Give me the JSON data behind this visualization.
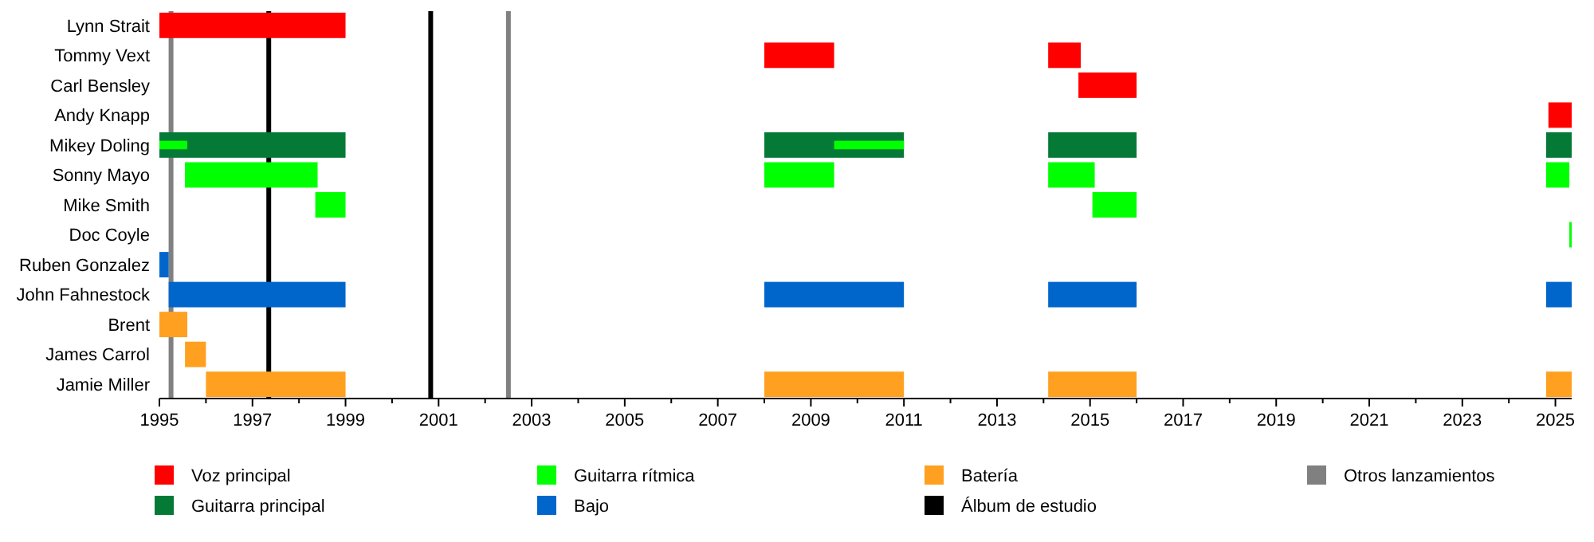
{
  "chart_data": {
    "type": "bar",
    "orientation": "horizontal",
    "legend": "bottom",
    "categories": [
      "Lynn Strait",
      "Tommy Vext",
      "Carl Bensley",
      "Andy Knapp",
      "Mikey Doling",
      "Sonny Mayo",
      "Mike Smith",
      "Doc Coyle",
      "Ruben Gonzalez",
      "John Fahnestock",
      "Brent",
      "James Carrol",
      "Jamie Miller"
    ],
    "xlim": [
      1995,
      2025.35
    ],
    "xticks": [
      1995,
      {
        "value": 1996,
        "label": null
      },
      1997,
      {
        "value": 1998,
        "label": null
      },
      1999,
      {
        "value": 2000,
        "label": null
      },
      2001,
      {
        "value": 2002,
        "label": null
      },
      2003,
      {
        "value": 2004,
        "label": null
      },
      2005,
      {
        "value": 2006,
        "label": null
      },
      2007,
      {
        "value": 2008,
        "label": null
      },
      2009,
      {
        "value": 2010,
        "label": null
      },
      2011,
      {
        "value": 2012,
        "label": null
      },
      2013,
      {
        "value": 2014,
        "label": null
      },
      2015,
      {
        "value": 2016,
        "label": null
      },
      2017,
      {
        "value": 2018,
        "label": null
      },
      2019,
      {
        "value": 2020,
        "label": null
      },
      2021,
      {
        "value": 2022,
        "label": null
      },
      2023,
      {
        "value": 2024,
        "label": null
      },
      2025
    ],
    "series": [
      {
        "name": "Voz principal",
        "color": "#ff0000",
        "base": [
          1995,
          2008,
          2014.75,
          2024.85,
          null,
          null,
          null,
          null,
          null,
          null,
          null,
          null,
          null
        ],
        "values": [
          4,
          1.5,
          1.25,
          0.5,
          null,
          null,
          null,
          null,
          null,
          null,
          null,
          null,
          null
        ]
      },
      {
        "color": "#ff0000",
        "base": [
          null,
          2014.1,
          null,
          null,
          null,
          null,
          null,
          null,
          null,
          null,
          null,
          null,
          null
        ],
        "values": [
          null,
          0.7,
          null,
          null,
          null,
          null,
          null,
          null,
          null,
          null,
          null,
          null,
          null
        ]
      },
      {
        "name": "Guitarra principal",
        "color": "#057a36",
        "base": [
          null,
          null,
          null,
          null,
          1995,
          null,
          null,
          null,
          null,
          null,
          null,
          null,
          null
        ],
        "values": [
          null,
          null,
          null,
          null,
          4,
          null,
          null,
          null,
          null,
          null,
          null,
          null,
          null
        ]
      },
      {
        "color": "#057a36",
        "base": [
          null,
          null,
          null,
          null,
          2008,
          null,
          null,
          null,
          null,
          null,
          null,
          null,
          null
        ],
        "values": [
          null,
          null,
          null,
          null,
          3,
          null,
          null,
          null,
          null,
          null,
          null,
          null,
          null
        ]
      },
      {
        "color": "#057a36",
        "base": [
          null,
          null,
          null,
          null,
          2014.1,
          null,
          null,
          null,
          null,
          null,
          null,
          null,
          null
        ],
        "values": [
          null,
          null,
          null,
          null,
          1.9,
          null,
          null,
          null,
          null,
          null,
          null,
          null,
          null
        ]
      },
      {
        "color": "#057a36",
        "base": [
          null,
          null,
          null,
          null,
          2024.8,
          null,
          null,
          null,
          null,
          null,
          null,
          null,
          null
        ],
        "values": [
          null,
          null,
          null,
          null,
          0.55,
          null,
          null,
          null,
          null,
          null,
          null,
          null,
          null
        ]
      },
      {
        "name": "Guitarra rítmica",
        "color": "#00ff00",
        "base": [
          null,
          null,
          null,
          null,
          1995,
          1995.55,
          1998.35,
          2025.3,
          null,
          null,
          null,
          null,
          null
        ],
        "values": [
          null,
          null,
          null,
          null,
          0.6,
          2.85,
          0.65,
          0.05,
          null,
          null,
          null,
          null,
          null
        ]
      },
      {
        "color": "#00ff00",
        "base": [
          null,
          null,
          null,
          null,
          2009.5,
          2008,
          2015.05,
          null,
          null,
          null,
          null,
          null,
          null
        ],
        "values": [
          null,
          null,
          null,
          null,
          1.5,
          1.5,
          0.95,
          null,
          null,
          null,
          null,
          null,
          null
        ]
      },
      {
        "color": "#00ff00",
        "base": [
          null,
          null,
          null,
          null,
          null,
          2014.1,
          null,
          null,
          null,
          null,
          null,
          null,
          null
        ],
        "values": [
          null,
          null,
          null,
          null,
          null,
          1,
          null,
          null,
          null,
          null,
          null,
          null,
          null
        ]
      },
      {
        "color": "#00ff00",
        "base": [
          null,
          null,
          null,
          null,
          null,
          2024.8,
          null,
          null,
          null,
          null,
          null,
          null,
          null
        ],
        "values": [
          null,
          null,
          null,
          null,
          null,
          0.5,
          null,
          null,
          null,
          null,
          null,
          null,
          null
        ]
      },
      {
        "name": "Bajo",
        "color": "#0066cc",
        "base": [
          null,
          null,
          null,
          null,
          null,
          null,
          null,
          null,
          1995,
          1995.2,
          null,
          null,
          null
        ],
        "values": [
          null,
          null,
          null,
          null,
          null,
          null,
          null,
          null,
          0.2,
          3.8,
          null,
          null,
          null
        ]
      },
      {
        "color": "#0066cc",
        "base": [
          null,
          null,
          null,
          null,
          null,
          null,
          null,
          null,
          null,
          2008,
          null,
          null,
          null
        ],
        "values": [
          null,
          null,
          null,
          null,
          null,
          null,
          null,
          null,
          null,
          3,
          null,
          null,
          null
        ]
      },
      {
        "color": "#0066cc",
        "base": [
          null,
          null,
          null,
          null,
          null,
          null,
          null,
          null,
          null,
          2014.1,
          null,
          null,
          null
        ],
        "values": [
          null,
          null,
          null,
          null,
          null,
          null,
          null,
          null,
          null,
          1.9,
          null,
          null,
          null
        ]
      },
      {
        "color": "#0066cc",
        "base": [
          null,
          null,
          null,
          null,
          null,
          null,
          null,
          null,
          null,
          2024.8,
          null,
          null,
          null
        ],
        "values": [
          null,
          null,
          null,
          null,
          null,
          null,
          null,
          null,
          null,
          0.55,
          null,
          null,
          null
        ]
      },
      {
        "name": "Batería",
        "color": "#ffa020",
        "base": [
          null,
          null,
          null,
          null,
          null,
          null,
          null,
          null,
          null,
          null,
          1995,
          1995.55,
          1996
        ],
        "values": [
          null,
          null,
          null,
          null,
          null,
          null,
          null,
          null,
          null,
          null,
          0.6,
          0.45,
          3
        ]
      },
      {
        "color": "#ffa020",
        "base": [
          null,
          null,
          null,
          null,
          null,
          null,
          null,
          null,
          null,
          null,
          null,
          null,
          2008
        ],
        "values": [
          null,
          null,
          null,
          null,
          null,
          null,
          null,
          null,
          null,
          null,
          null,
          null,
          3
        ]
      },
      {
        "color": "#ffa020",
        "base": [
          null,
          null,
          null,
          null,
          null,
          null,
          null,
          null,
          null,
          null,
          null,
          null,
          2014.1
        ],
        "values": [
          null,
          null,
          null,
          null,
          null,
          null,
          null,
          null,
          null,
          null,
          null,
          null,
          1.9
        ]
      },
      {
        "color": "#ffa020",
        "base": [
          null,
          null,
          null,
          null,
          null,
          null,
          null,
          null,
          null,
          null,
          null,
          null,
          2024.8
        ],
        "values": [
          null,
          null,
          null,
          null,
          null,
          null,
          null,
          null,
          null,
          null,
          null,
          null,
          0.55
        ]
      }
    ],
    "ref_lines": [
      {
        "axis": "x",
        "value": 1997.35,
        "color": "#000000",
        "label": "Álbum de estudio"
      },
      {
        "axis": "x",
        "value": 2000.83,
        "color": "#000000"
      },
      {
        "axis": "x",
        "value": 1995.25,
        "color": "#808080",
        "label": "Otros lanzamientos"
      },
      {
        "axis": "x",
        "value": 2002.5,
        "color": "#808080"
      }
    ]
  }
}
